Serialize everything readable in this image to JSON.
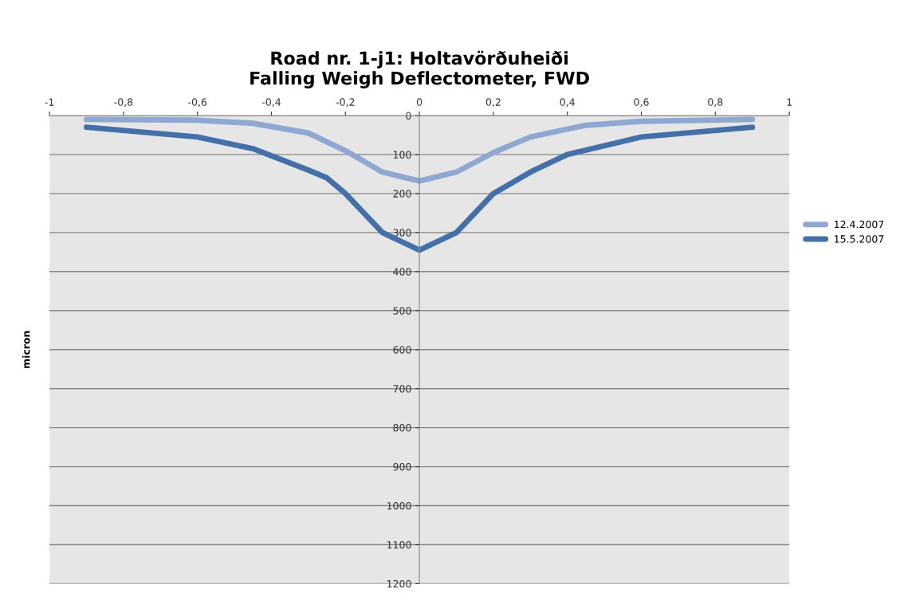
{
  "chart_data": {
    "type": "line",
    "title": "Road nr. 1-j1: Holtavörðuheiði\nFalling Weigh Deflectometer, FWD",
    "ylabel": "micron",
    "xlim": [
      -1,
      1
    ],
    "ylim": [
      1200,
      0
    ],
    "xticks": [
      {
        "value": -1,
        "label": "-1"
      },
      {
        "value": -0.8,
        "label": "-0,8"
      },
      {
        "value": -0.6,
        "label": "-0,6"
      },
      {
        "value": -0.4,
        "label": "-0,4"
      },
      {
        "value": -0.2,
        "label": "-0,2"
      },
      {
        "value": 0,
        "label": "0"
      },
      {
        "value": 0.2,
        "label": "0,2"
      },
      {
        "value": 0.4,
        "label": "0,4"
      },
      {
        "value": 0.6,
        "label": "0,6"
      },
      {
        "value": 0.8,
        "label": "0,8"
      },
      {
        "value": 1,
        "label": "1"
      }
    ],
    "yticks": [
      0,
      100,
      200,
      300,
      400,
      500,
      600,
      700,
      800,
      900,
      1000,
      1100,
      1200
    ],
    "grid": "y",
    "legend": "right",
    "marker": "none",
    "line_style": "solid",
    "series": [
      {
        "name": "12.4.2007",
        "color": "#8fa8d2",
        "x": [
          -0.9,
          -0.6,
          -0.45,
          -0.3,
          -0.2,
          -0.1,
          0,
          0.1,
          0.2,
          0.3,
          0.45,
          0.6,
          0.9
        ],
        "values": [
          10,
          12,
          20,
          45,
          90,
          145,
          168,
          145,
          95,
          55,
          25,
          15,
          10
        ]
      },
      {
        "name": "15.5.2007",
        "color": "#4470aa",
        "x": [
          -0.9,
          -0.6,
          -0.45,
          -0.3,
          -0.25,
          -0.2,
          -0.1,
          0,
          0.1,
          0.2,
          0.3,
          0.4,
          0.6,
          0.9
        ],
        "values": [
          30,
          55,
          85,
          140,
          160,
          200,
          300,
          345,
          300,
          200,
          145,
          100,
          55,
          30
        ]
      }
    ]
  }
}
